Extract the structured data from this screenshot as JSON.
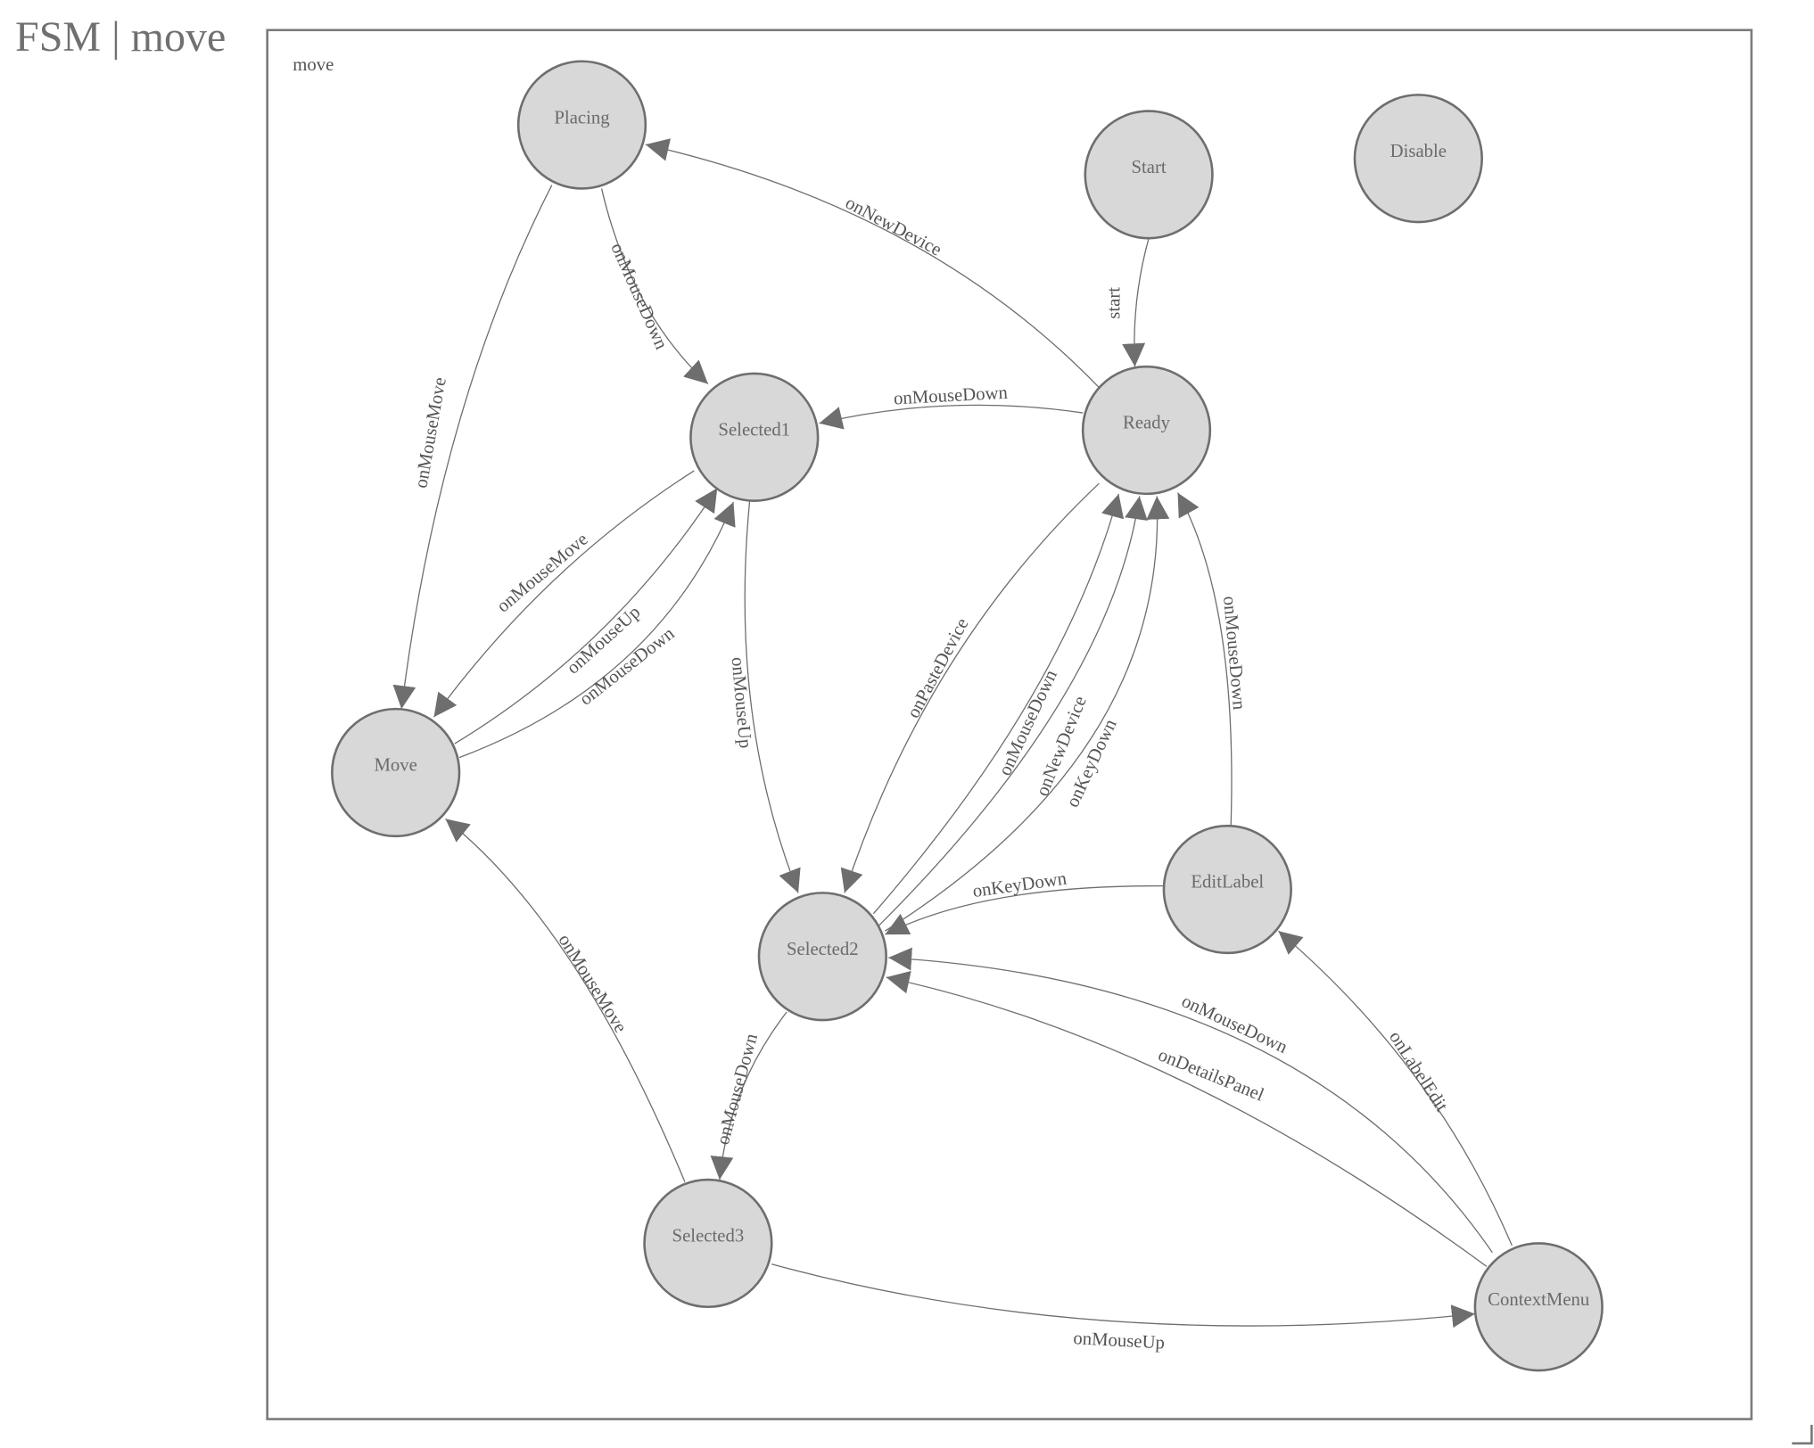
{
  "title": "FSM | move",
  "diagram": {
    "group_label": "move",
    "node_fill": "#d8d8d8",
    "stroke_color": "#6e6e6e",
    "states": [
      "Placing",
      "Start",
      "Disable",
      "Selected1",
      "Ready",
      "Move",
      "EditLabel",
      "Selected2",
      "Selected3",
      "ContextMenu"
    ],
    "transitions": [
      {
        "from": "Start",
        "to": "Ready",
        "label": "start"
      },
      {
        "from": "Ready",
        "to": "Placing",
        "label": "onNewDevice"
      },
      {
        "from": "Placing",
        "to": "Selected1",
        "label": "onMouseDown"
      },
      {
        "from": "Placing",
        "to": "Move",
        "label": "onMouseMove"
      },
      {
        "from": "Ready",
        "to": "Selected1",
        "label": "onMouseDown"
      },
      {
        "from": "Selected1",
        "to": "Move",
        "label": "onMouseMove"
      },
      {
        "from": "Move",
        "to": "Selected1",
        "label": "onMouseUp"
      },
      {
        "from": "Move",
        "to": "Selected1",
        "label": "onMouseDown"
      },
      {
        "from": "Selected1",
        "to": "Selected2",
        "label": "onMouseUp"
      },
      {
        "from": "Ready",
        "to": "Selected2",
        "label": "onPasteDevice"
      },
      {
        "from": "Selected2",
        "to": "Ready",
        "label": "onMouseDown"
      },
      {
        "from": "Selected2",
        "to": "Ready",
        "label": "onNewDevice"
      },
      {
        "from": "Selected2",
        "to": "Ready",
        "label": "onKeyDown"
      },
      {
        "from": "EditLabel",
        "to": "Ready",
        "label": "onMouseDown"
      },
      {
        "from": "EditLabel",
        "to": "Selected2",
        "label": "onKeyDown"
      },
      {
        "from": "ContextMenu",
        "to": "Selected2",
        "label": "onMouseDown"
      },
      {
        "from": "ContextMenu",
        "to": "Selected2",
        "label": "onDetailsPanel"
      },
      {
        "from": "ContextMenu",
        "to": "EditLabel",
        "label": "onLabelEdit"
      },
      {
        "from": "Selected2",
        "to": "Selected3",
        "label": "onMouseDown"
      },
      {
        "from": "Selected3",
        "to": "Move",
        "label": "onMouseMove"
      },
      {
        "from": "Selected3",
        "to": "ContextMenu",
        "label": "onMouseUp"
      }
    ]
  }
}
